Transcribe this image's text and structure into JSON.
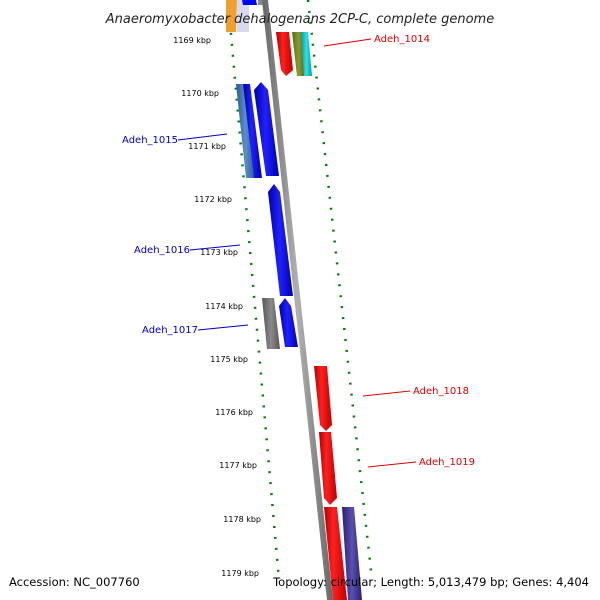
{
  "title": "Anaeromyxobacter dehalogenans 2CP-C, complete genome",
  "footer": {
    "accession": "Accession: NC_007760",
    "summary": "Topology: circular; Length: 5,013,479 bp; Genes: 4,404"
  },
  "ticks": [
    "1169 kbp",
    "1170 kbp",
    "1171 kbp",
    "1172 kbp",
    "1173 kbp",
    "1174 kbp",
    "1175 kbp",
    "1176 kbp",
    "1177 kbp",
    "1178 kbp",
    "1179 kbp"
  ],
  "gene_labels": [
    {
      "text": "Adeh_1014",
      "strand": "forward",
      "color": "#e00000"
    },
    {
      "text": "Adeh_1015",
      "strand": "reverse",
      "color": "#0000c0"
    },
    {
      "text": "Adeh_1016",
      "strand": "reverse",
      "color": "#0000c0"
    },
    {
      "text": "Adeh_1017",
      "strand": "reverse",
      "color": "#0000c0"
    },
    {
      "text": "Adeh_1018",
      "strand": "forward",
      "color": "#e00000"
    },
    {
      "text": "Adeh_1019",
      "strand": "forward",
      "color": "#e00000"
    }
  ],
  "colors": {
    "forward_gene": "#ff0000",
    "reverse_gene": "#0000ff",
    "backbone": "#888888",
    "tick_marks": "#008000"
  }
}
